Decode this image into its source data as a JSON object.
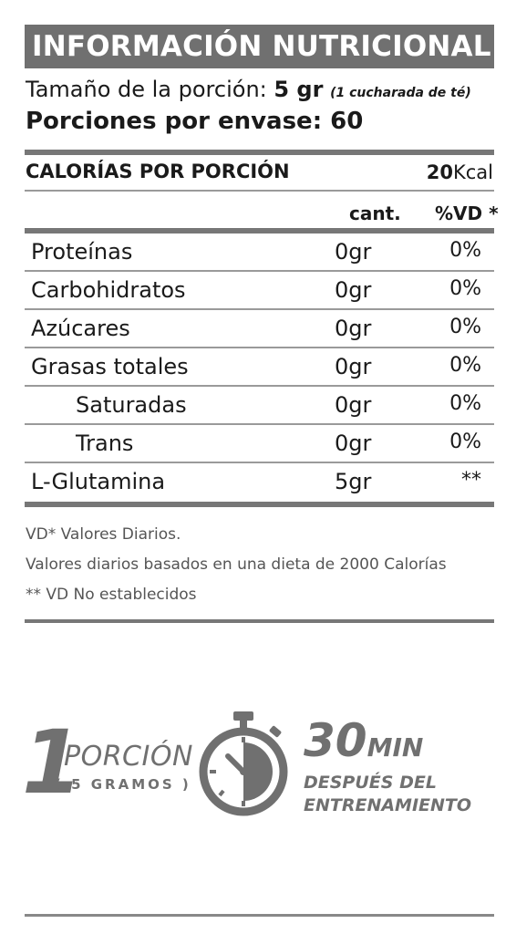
{
  "title": "INFORMACIÓN NUTRICIONAL",
  "serving": {
    "label": "Tamaño de la porción: ",
    "value": "5 gr",
    "note": "(1 cucharada de té)"
  },
  "portions": "Porciones por envase: 60",
  "calories": {
    "label": "CALORÍAS POR PORCIÓN",
    "number": "20",
    "unit": "Kcal"
  },
  "columns": {
    "amount": "cant.",
    "daily_value": "%VD *"
  },
  "rows": [
    {
      "name": "Proteínas",
      "amount": "0gr",
      "dv": "0%"
    },
    {
      "name": "Carbohidratos",
      "amount": "0gr",
      "dv": "0%"
    },
    {
      "name": "Azúcares",
      "amount": "0gr",
      "dv": "0%"
    },
    {
      "name": "Grasas totales",
      "amount": "0gr",
      "dv": "0%"
    },
    {
      "name": "Saturadas",
      "amount": "0gr",
      "dv": "0%"
    },
    {
      "name": "Trans",
      "amount": "0gr",
      "dv": "0%"
    },
    {
      "name": "L-Glutamina",
      "amount": "5gr",
      "dv": "**"
    }
  ],
  "footnotes": [
    "VD* Valores Diarios.",
    "Valores diarios basados en una dieta de 2000 Calorías",
    "**  VD No establecidos"
  ],
  "usage": {
    "big_number": "1",
    "porcion": "PORCIÓN",
    "gramos": "( 5 GRAMOS )",
    "timer_icon": "stopwatch-icon",
    "minutes": "30",
    "minutes_unit": "MIN",
    "after_line1": "DESPUÉS DEL",
    "after_line2": "ENTRENAMIENTO"
  },
  "colors": {
    "header_bg": "#707070",
    "accent_gray": "#707070"
  }
}
